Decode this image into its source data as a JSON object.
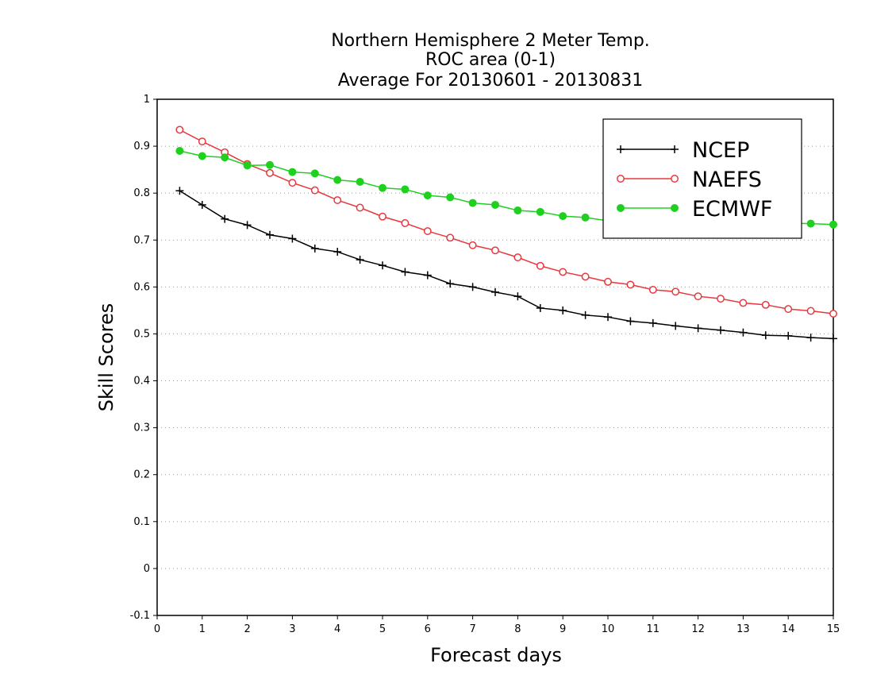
{
  "chart_data": {
    "type": "line",
    "title": [
      "Northern Hemisphere 2 Meter Temp.",
      "ROC area (0-1)",
      "Average For 20130601 - 20130831"
    ],
    "xlabel": "Forecast days",
    "ylabel": "Skill Scores",
    "xlim": [
      0,
      15
    ],
    "ylim": [
      -0.1,
      1
    ],
    "x_ticks": [
      "0",
      "1",
      "2",
      "3",
      "4",
      "5",
      "6",
      "7",
      "8",
      "9",
      "10",
      "11",
      "12",
      "13",
      "14",
      "15"
    ],
    "y_ticks": [
      "-0.1",
      "0",
      "0.1",
      "0.2",
      "0.3",
      "0.4",
      "0.5",
      "0.6",
      "0.7",
      "0.8",
      "0.9",
      "1"
    ],
    "grid": "horizontal dotted",
    "legend_position": "top-right",
    "x": [
      0.5,
      1,
      1.5,
      2,
      2.5,
      3,
      3.5,
      4,
      4.5,
      5,
      5.5,
      6,
      6.5,
      7,
      7.5,
      8,
      8.5,
      9,
      9.5,
      10,
      10.5,
      11,
      11.5,
      12,
      12.5,
      13,
      13.5,
      14,
      14.5,
      15
    ],
    "series": [
      {
        "name": "NCEP",
        "color": "#000000",
        "marker": "plus",
        "values": [
          0.805,
          0.775,
          0.745,
          0.732,
          0.711,
          0.703,
          0.682,
          0.675,
          0.658,
          0.646,
          0.632,
          0.625,
          0.607,
          0.6,
          0.589,
          0.58,
          0.555,
          0.55,
          0.54,
          0.536,
          0.527,
          0.523,
          0.517,
          0.512,
          0.508,
          0.503,
          0.497,
          0.496,
          0.492,
          0.49
        ]
      },
      {
        "name": "NAEFS",
        "color": "#e8383d",
        "marker": "open-circle",
        "values": [
          0.935,
          0.91,
          0.887,
          0.862,
          0.843,
          0.822,
          0.806,
          0.785,
          0.769,
          0.75,
          0.736,
          0.719,
          0.705,
          0.689,
          0.678,
          0.663,
          0.645,
          0.632,
          0.622,
          0.611,
          0.605,
          0.594,
          0.59,
          0.58,
          0.575,
          0.566,
          0.562,
          0.553,
          0.549,
          0.543
        ]
      },
      {
        "name": "ECMWF",
        "color": "#1fd01f",
        "marker": "filled-circle",
        "values": [
          0.89,
          0.879,
          0.876,
          0.859,
          0.86,
          0.845,
          0.842,
          0.828,
          0.824,
          0.811,
          0.808,
          0.795,
          0.791,
          0.779,
          0.775,
          0.763,
          0.76,
          0.751,
          0.748,
          0.741,
          0.74,
          0.739,
          0.738,
          0.737,
          0.737,
          0.736,
          0.736,
          0.736,
          0.735,
          0.733
        ]
      }
    ]
  }
}
